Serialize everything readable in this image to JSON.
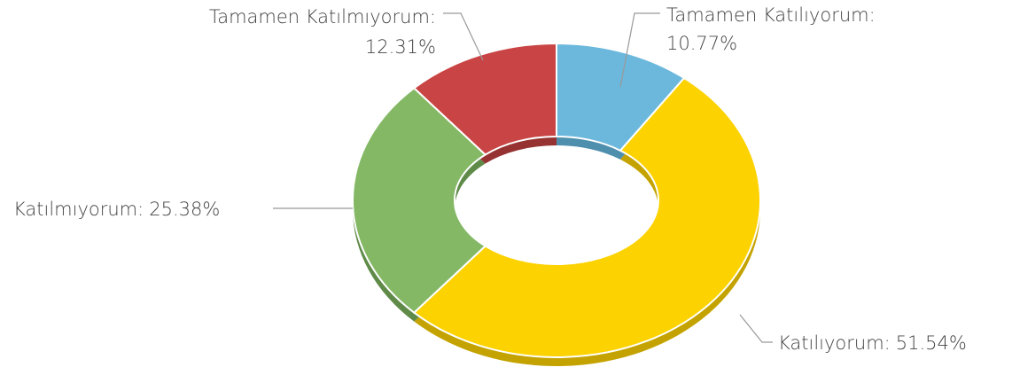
{
  "chart_data": {
    "type": "pie",
    "categories": [
      "Tamamen Katılıyorum:",
      "Katılıyorum:",
      "Katılmıyorum:",
      "Tamamen Katılmıyorum:"
    ],
    "values": [
      10.77,
      51.54,
      25.38,
      12.31
    ],
    "value_labels": [
      "10.77%",
      "51.54%",
      "25.38%",
      "12.31%"
    ],
    "colors": [
      "#6cb8dd",
      "#fcd200",
      "#84b865",
      "#c94444"
    ],
    "depth_colors": [
      "#4f8fae",
      "#c4a300",
      "#5f8a48",
      "#963232"
    ]
  }
}
